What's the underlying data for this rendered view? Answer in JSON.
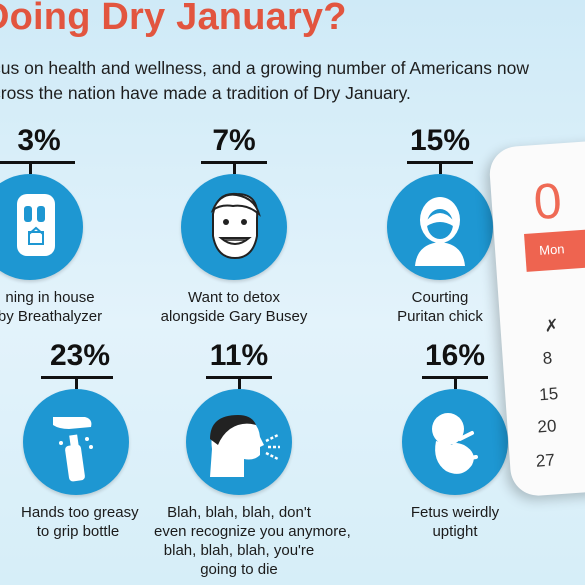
{
  "title": "Doing Dry January?",
  "intro": [
    "cus on health and wellness, and a growing number of Americans now",
    "cross the nation have made a tradition of Dry January."
  ],
  "stats": [
    {
      "pct": "3%",
      "lines": [
        "ning in house",
        "by Breathalyzer"
      ],
      "icon": "breathalyzer-icon"
    },
    {
      "pct": "7%",
      "lines": [
        "Want to detox",
        "alongside Gary Busey"
      ],
      "icon": "grinning-face-icon"
    },
    {
      "pct": "15%",
      "lines": [
        "Courting",
        "Puritan chick"
      ],
      "icon": "puritan-woman-icon"
    },
    {
      "pct": "23%",
      "lines": [
        "Hands too greasy",
        "to grip bottle"
      ],
      "icon": "hand-dropping-bottle-icon"
    },
    {
      "pct": "11%",
      "lines": [
        "Blah, blah, blah, don't",
        "even recognize you anymore,",
        "blah, blah, blah, you're",
        "going to die"
      ],
      "icon": "talking-head-icon"
    },
    {
      "pct": "16%",
      "lines": [
        "Fetus weirdly",
        "uptight"
      ],
      "icon": "fetus-icon"
    }
  ],
  "calendar": {
    "day": "0",
    "weekday": "Mon",
    "marks": [
      "8",
      "15",
      "20",
      "27"
    ]
  }
}
